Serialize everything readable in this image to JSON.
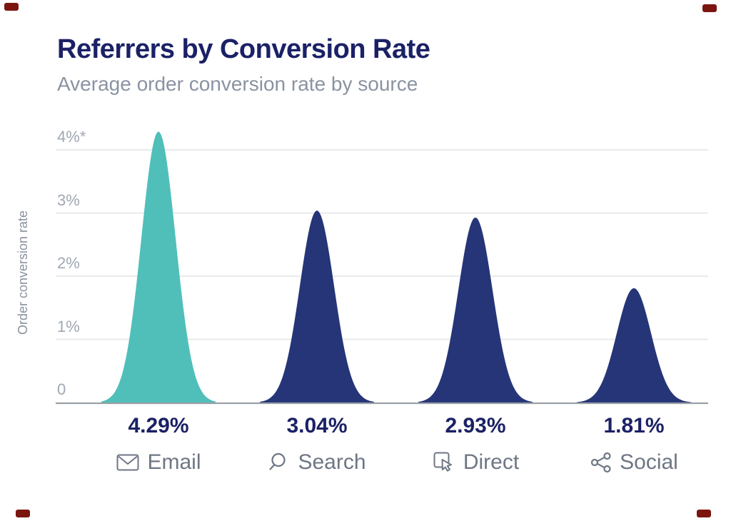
{
  "header": {
    "title": "Referrers by Conversion Rate",
    "subtitle": "Average order conversion rate by source"
  },
  "chart_data": {
    "type": "area",
    "title": "Referrers by Conversion Rate",
    "subtitle": "Average order conversion rate by source",
    "ylabel": "Order conversion rate",
    "xlabel": "",
    "y_ticks": [
      "4%*",
      "3%",
      "2%",
      "1%",
      "0"
    ],
    "ylim": [
      0,
      4.3
    ],
    "grid": true,
    "legend": false,
    "categories": [
      "Email",
      "Search",
      "Direct",
      "Social"
    ],
    "values": [
      4.29,
      3.04,
      2.93,
      1.81
    ],
    "value_labels": [
      "4.29%",
      "3.04%",
      "2.93%",
      "1.81%"
    ],
    "icons": [
      "envelope-icon",
      "magnifier-icon",
      "cursor-click-icon",
      "share-icon"
    ],
    "series_colors": [
      "#50bfb9",
      "#263577",
      "#263577",
      "#263577"
    ],
    "colors": {
      "highlight": "#50bfb9",
      "default_peak": "#263577",
      "grid": "#e6e7e9",
      "axis": "#9ba0a7",
      "title_text": "#1b2166",
      "subtitle_text": "#8a93a2",
      "value_text": "#1b2164",
      "category_text": "#6e7684",
      "tick_text": "#a0a8b2"
    }
  },
  "corner_marks": {
    "color": "#7b150f"
  }
}
